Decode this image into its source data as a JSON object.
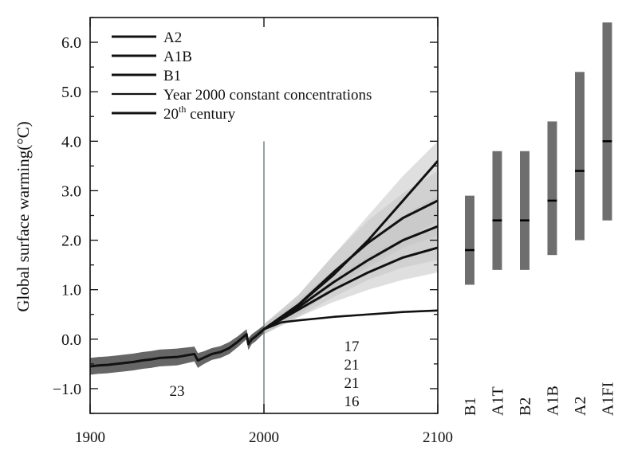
{
  "chart_data": {
    "type": "line",
    "title": "",
    "xlabel": "",
    "ylabel": "Global surface warming(°C)",
    "xlim": [
      1900,
      2100
    ],
    "ylim": [
      -1.5,
      6.5
    ],
    "x_ticks": [
      "1900",
      "2000",
      "2100"
    ],
    "y_ticks": [
      "−1.0",
      "0.0",
      "1.0",
      "2.0",
      "3.0",
      "4.0",
      "5.0",
      "6.0"
    ],
    "legend": {
      "placement": "top-left",
      "items": [
        {
          "id": "a2",
          "label_main": "A2",
          "label_sup": ""
        },
        {
          "id": "a1b",
          "label_main": "A1B",
          "label_sup": ""
        },
        {
          "id": "b1",
          "label_main": "B1",
          "label_sup": ""
        },
        {
          "id": "const",
          "label_main": "Year 2000 constant concentrations",
          "label_sup": ""
        },
        {
          "id": "c20",
          "label_main": "20",
          "label_sup": "th",
          "label_rest": " century"
        }
      ]
    },
    "series": [
      {
        "name": "20th century",
        "x": [
          1900,
          1905,
          1910,
          1915,
          1920,
          1925,
          1930,
          1935,
          1940,
          1945,
          1950,
          1955,
          1960,
          1962,
          1965,
          1970,
          1975,
          1980,
          1985,
          1990,
          1991,
          1993,
          1995,
          2000
        ],
        "y": [
          -0.55,
          -0.53,
          -0.52,
          -0.5,
          -0.48,
          -0.46,
          -0.43,
          -0.41,
          -0.38,
          -0.37,
          -0.36,
          -0.33,
          -0.3,
          -0.43,
          -0.38,
          -0.3,
          -0.26,
          -0.18,
          -0.05,
          0.1,
          -0.1,
          0.0,
          0.05,
          0.2
        ],
        "band_upper": [
          -0.38,
          -0.36,
          -0.35,
          -0.33,
          -0.31,
          -0.29,
          -0.26,
          -0.24,
          -0.21,
          -0.2,
          -0.19,
          -0.17,
          -0.15,
          -0.28,
          -0.25,
          -0.18,
          -0.14,
          -0.06,
          0.06,
          0.2,
          0.02,
          0.1,
          0.15,
          0.28
        ],
        "band_lower": [
          -0.72,
          -0.7,
          -0.69,
          -0.67,
          -0.65,
          -0.63,
          -0.6,
          -0.58,
          -0.55,
          -0.54,
          -0.53,
          -0.49,
          -0.45,
          -0.58,
          -0.51,
          -0.42,
          -0.38,
          -0.3,
          -0.16,
          0.0,
          -0.22,
          -0.1,
          -0.05,
          0.12
        ]
      },
      {
        "name": "A2",
        "x": [
          2000,
          2020,
          2040,
          2060,
          2080,
          2100
        ],
        "y": [
          0.2,
          0.7,
          1.3,
          2.0,
          2.8,
          3.6
        ],
        "band_upper": [
          0.3,
          0.9,
          1.7,
          2.5,
          3.3,
          4.0
        ],
        "band_lower": [
          0.1,
          0.5,
          1.0,
          1.5,
          2.0,
          2.4
        ]
      },
      {
        "name": "A1B",
        "x": [
          2000,
          2020,
          2040,
          2060,
          2080,
          2100
        ],
        "y": [
          0.2,
          0.7,
          1.35,
          1.95,
          2.45,
          2.8
        ],
        "band_upper": [
          0.3,
          0.9,
          1.7,
          2.4,
          2.95,
          3.4
        ],
        "band_lower": [
          0.1,
          0.5,
          1.0,
          1.45,
          1.85,
          2.1
        ]
      },
      {
        "name": "",
        "x": [
          2000,
          2020,
          2040,
          2060,
          2080,
          2100
        ],
        "y": [
          0.2,
          0.65,
          1.15,
          1.6,
          2.0,
          2.28
        ],
        "band_upper": [
          0.3,
          0.8,
          1.4,
          2.0,
          2.5,
          2.9
        ],
        "band_lower": [
          0.1,
          0.45,
          0.85,
          1.2,
          1.45,
          1.6
        ]
      },
      {
        "name": "B1",
        "x": [
          2000,
          2020,
          2040,
          2060,
          2080,
          2100
        ],
        "y": [
          0.2,
          0.6,
          1.0,
          1.35,
          1.65,
          1.85
        ],
        "band_upper": [
          0.3,
          0.75,
          1.25,
          1.7,
          2.05,
          2.3
        ],
        "band_lower": [
          0.1,
          0.45,
          0.75,
          1.0,
          1.2,
          1.35
        ]
      },
      {
        "name": "Year 2000 constant concentrations",
        "x": [
          2000,
          2010,
          2020,
          2040,
          2060,
          2080,
          2100
        ],
        "y": [
          0.2,
          0.34,
          0.38,
          0.45,
          0.5,
          0.55,
          0.58
        ],
        "band_upper": [],
        "band_lower": []
      }
    ],
    "counts": {
      "historical": "23",
      "projections": [
        "17",
        "21",
        "21",
        "16"
      ]
    },
    "ranges_2100": [
      {
        "label": "B1",
        "low": 1.1,
        "best": 1.8,
        "high": 2.9
      },
      {
        "label": "A1T",
        "low": 1.4,
        "best": 2.4,
        "high": 3.8
      },
      {
        "label": "B2",
        "low": 1.4,
        "best": 2.4,
        "high": 3.8
      },
      {
        "label": "A1B",
        "low": 1.7,
        "best": 2.8,
        "high": 4.4
      },
      {
        "label": "A2",
        "low": 2.0,
        "best": 3.4,
        "high": 5.4
      },
      {
        "label": "A1FI",
        "low": 2.4,
        "best": 4.0,
        "high": 6.4
      }
    ],
    "grid": false,
    "colors": {
      "line": "#111111",
      "band_projection": "#c4c4c4",
      "band_historical": "#5e5e5e",
      "range_bar": "#6e6e6e",
      "divider": "#6b7b80"
    }
  }
}
